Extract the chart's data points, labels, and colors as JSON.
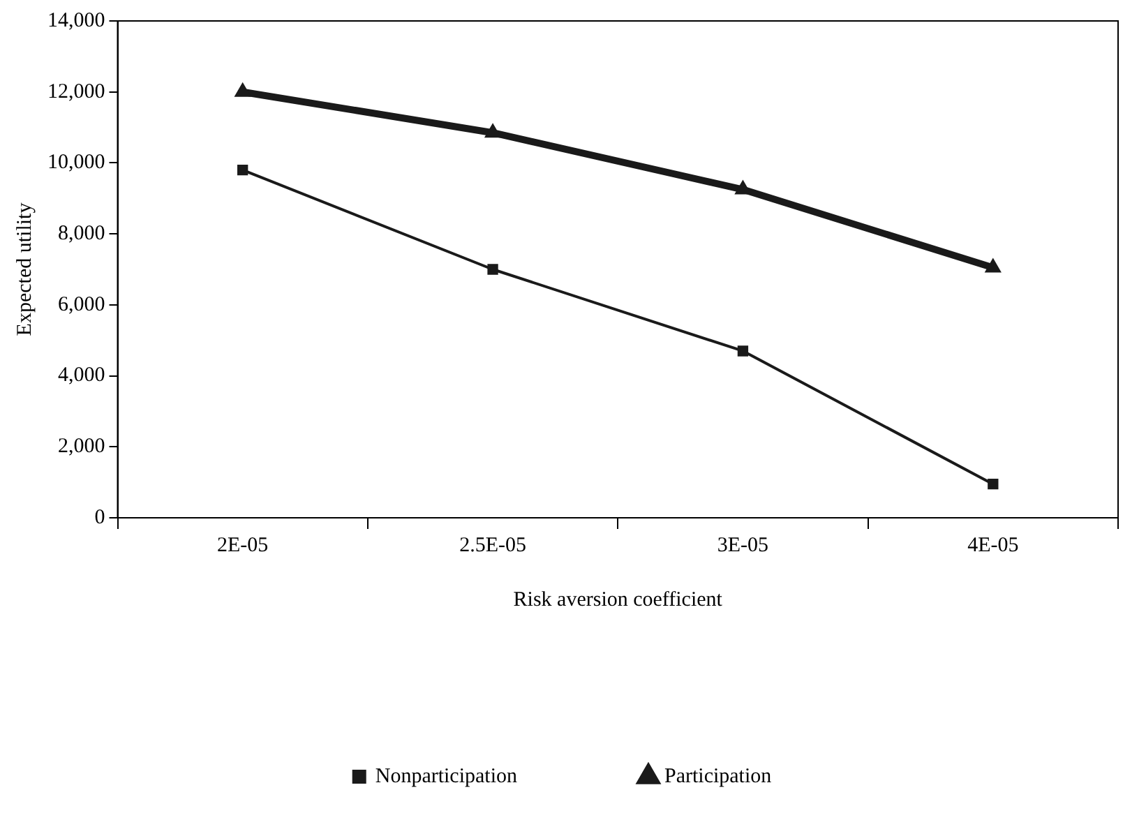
{
  "chart_data": {
    "type": "line",
    "xlabel": "Risk aversion coefficient",
    "ylabel": "Expected utility",
    "categories": [
      "2E-05",
      "2.5E-05",
      "3E-05",
      "4E-05"
    ],
    "series": [
      {
        "name": "Nonparticipation",
        "color": "#1a1a1a",
        "values": [
          9800,
          7000,
          4700,
          950
        ],
        "marker": "square"
      },
      {
        "name": "Participation",
        "color": "#1a1a1a",
        "values": [
          12000,
          10850,
          9250,
          7050
        ],
        "marker": "triangle"
      }
    ],
    "ylim": [
      0,
      14000
    ],
    "yticks": [
      {
        "value": 0,
        "label": "0"
      },
      {
        "value": 2000,
        "label": "2,000"
      },
      {
        "value": 4000,
        "label": "4,000"
      },
      {
        "value": 6000,
        "label": "6,000"
      },
      {
        "value": 8000,
        "label": "8,000"
      },
      {
        "value": 10000,
        "label": "10,000"
      },
      {
        "value": 12000,
        "label": "12,000"
      },
      {
        "value": 14000,
        "label": "14,000"
      }
    ],
    "grid": false,
    "legend": "bottom",
    "line_style": "solid"
  }
}
